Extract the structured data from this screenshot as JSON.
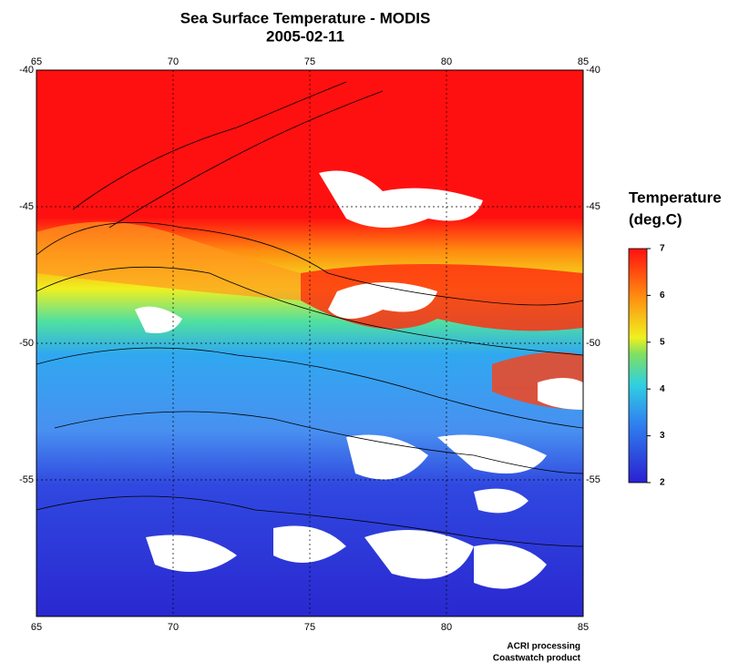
{
  "title": "Sea Surface Temperature - MODIS",
  "subtitle": "2005-02-11",
  "map": {
    "xlim": [
      65,
      85
    ],
    "ylim": [
      -60,
      -40
    ],
    "xticks": [
      65,
      70,
      75,
      80,
      85
    ],
    "yticks": [
      -40,
      -45,
      -50,
      -55
    ]
  },
  "colorbar": {
    "title": "Temperature",
    "unit": "(deg.C)",
    "range": [
      2,
      7
    ],
    "ticks": [
      2,
      3,
      4,
      5,
      6,
      7
    ]
  },
  "credits": [
    "ACRI processing",
    "Coastwatch product"
  ]
}
